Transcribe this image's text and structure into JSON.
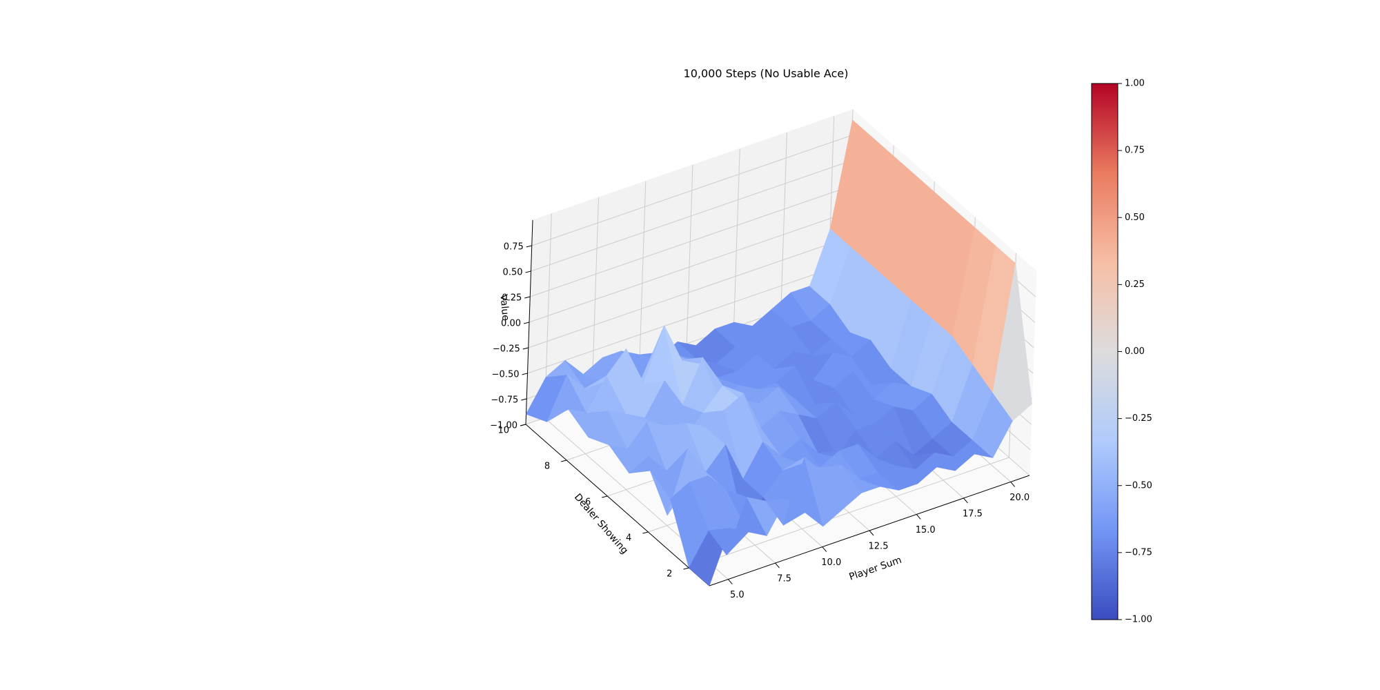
{
  "chart_data": {
    "type": "surface3d",
    "title": "10,000 Steps (No Usable Ace)",
    "xlabel": "Player Sum",
    "ylabel": "Dealer Showing",
    "zlabel": "Value",
    "xlim": [
      4,
      21
    ],
    "ylim": [
      1,
      10
    ],
    "zlim": [
      -1,
      1
    ],
    "x_ticks": [
      "5.0",
      "7.5",
      "10.0",
      "12.5",
      "15.0",
      "17.5",
      "20.0"
    ],
    "x_tick_values": [
      5,
      7.5,
      10,
      12.5,
      15,
      17.5,
      20
    ],
    "y_ticks": [
      "2",
      "4",
      "6",
      "8",
      "10"
    ],
    "y_tick_values": [
      2,
      4,
      6,
      8,
      10
    ],
    "z_ticks": [
      "−1.00",
      "−0.75",
      "−0.50",
      "−0.25",
      "0.00",
      "0.25",
      "0.50",
      "0.75"
    ],
    "z_tick_values": [
      -1,
      -0.75,
      -0.5,
      -0.25,
      0,
      0.25,
      0.5,
      0.75
    ],
    "colormap": "coolwarm",
    "colormap_colors": [
      "#3b4cc0",
      "#7396f5",
      "#b0cbfc",
      "#dddcdc",
      "#f6bfa6",
      "#ea7b60",
      "#b40426"
    ],
    "colorbar": {
      "ticks": [
        "1.00",
        "0.75",
        "0.50",
        "0.25",
        "0.00",
        "−0.25",
        "−0.50",
        "−0.75",
        "−1.00"
      ],
      "tick_values": [
        1,
        0.75,
        0.5,
        0.25,
        0,
        -0.25,
        -0.5,
        -0.75,
        -1
      ]
    },
    "player_sums": [
      4,
      5,
      6,
      7,
      8,
      9,
      10,
      11,
      12,
      13,
      14,
      15,
      16,
      17,
      18,
      19,
      20,
      21
    ],
    "dealer_showing": [
      1,
      2,
      3,
      4,
      5,
      6,
      7,
      8,
      9,
      10
    ],
    "values": [
      [
        -1.0,
        -0.5,
        -0.6,
        -0.7,
        -0.4,
        -0.6,
        -0.8,
        -0.7,
        -0.6,
        -0.6,
        -0.7,
        -0.7,
        -0.6,
        -0.7,
        -0.6,
        -0.7,
        -0.4,
        -0.3
      ],
      [
        -1.0,
        -0.7,
        -1.0,
        -0.5,
        -0.6,
        -0.9,
        -0.3,
        -0.5,
        -0.5,
        -0.7,
        -0.7,
        -0.7,
        -0.8,
        -0.7,
        -0.8,
        -0.7,
        -0.3,
        0.9
      ],
      [
        -0.5,
        -0.4,
        -0.4,
        -0.6,
        -1.0,
        -0.8,
        -0.6,
        -0.6,
        -0.7,
        -0.6,
        -0.6,
        -0.8,
        -0.7,
        -0.9,
        -0.8,
        -0.7,
        -0.2,
        0.9
      ],
      [
        -0.4,
        -0.9,
        -0.3,
        -0.6,
        -0.4,
        -0.8,
        -0.5,
        -0.7,
        -0.6,
        -0.8,
        -0.9,
        -0.7,
        -0.7,
        -0.6,
        -0.7,
        -0.6,
        -0.1,
        0.9
      ],
      [
        -0.6,
        -0.5,
        -0.7,
        -0.3,
        -0.4,
        -0.3,
        -0.2,
        -0.6,
        -0.5,
        -0.6,
        -0.7,
        -0.6,
        -0.8,
        -0.7,
        -0.6,
        -0.7,
        -0.1,
        0.9
      ],
      [
        -0.5,
        -0.6,
        -0.4,
        -0.5,
        -0.7,
        -0.5,
        -0.3,
        -0.5,
        -0.6,
        -0.5,
        -0.7,
        -0.8,
        -0.7,
        -0.6,
        -0.8,
        -0.7,
        -0.1,
        0.9
      ],
      [
        -0.6,
        -0.4,
        -0.5,
        -0.6,
        -0.3,
        -0.6,
        -0.2,
        -0.7,
        -0.6,
        -0.7,
        -0.7,
        -0.6,
        -0.8,
        -0.6,
        -0.7,
        -0.6,
        -0.1,
        0.9
      ],
      [
        -0.5,
        -0.6,
        -0.3,
        -0.1,
        -0.5,
        0.0,
        -0.4,
        -0.5,
        -0.7,
        -0.7,
        -0.6,
        -0.8,
        -0.7,
        -0.8,
        -0.7,
        -0.7,
        -0.1,
        0.9
      ],
      [
        -0.8,
        -0.4,
        -0.6,
        -0.6,
        -0.4,
        -0.7,
        -0.5,
        -0.6,
        -0.7,
        -0.8,
        -0.7,
        -0.7,
        -0.6,
        -0.7,
        -0.7,
        -0.6,
        -0.1,
        0.9
      ],
      [
        -0.9,
        -0.6,
        -0.5,
        -0.7,
        -0.6,
        -0.6,
        -0.7,
        -0.8,
        -0.7,
        -0.8,
        -0.7,
        -0.7,
        -0.8,
        -0.7,
        -0.6,
        -0.6,
        -0.1,
        0.9
      ]
    ]
  }
}
